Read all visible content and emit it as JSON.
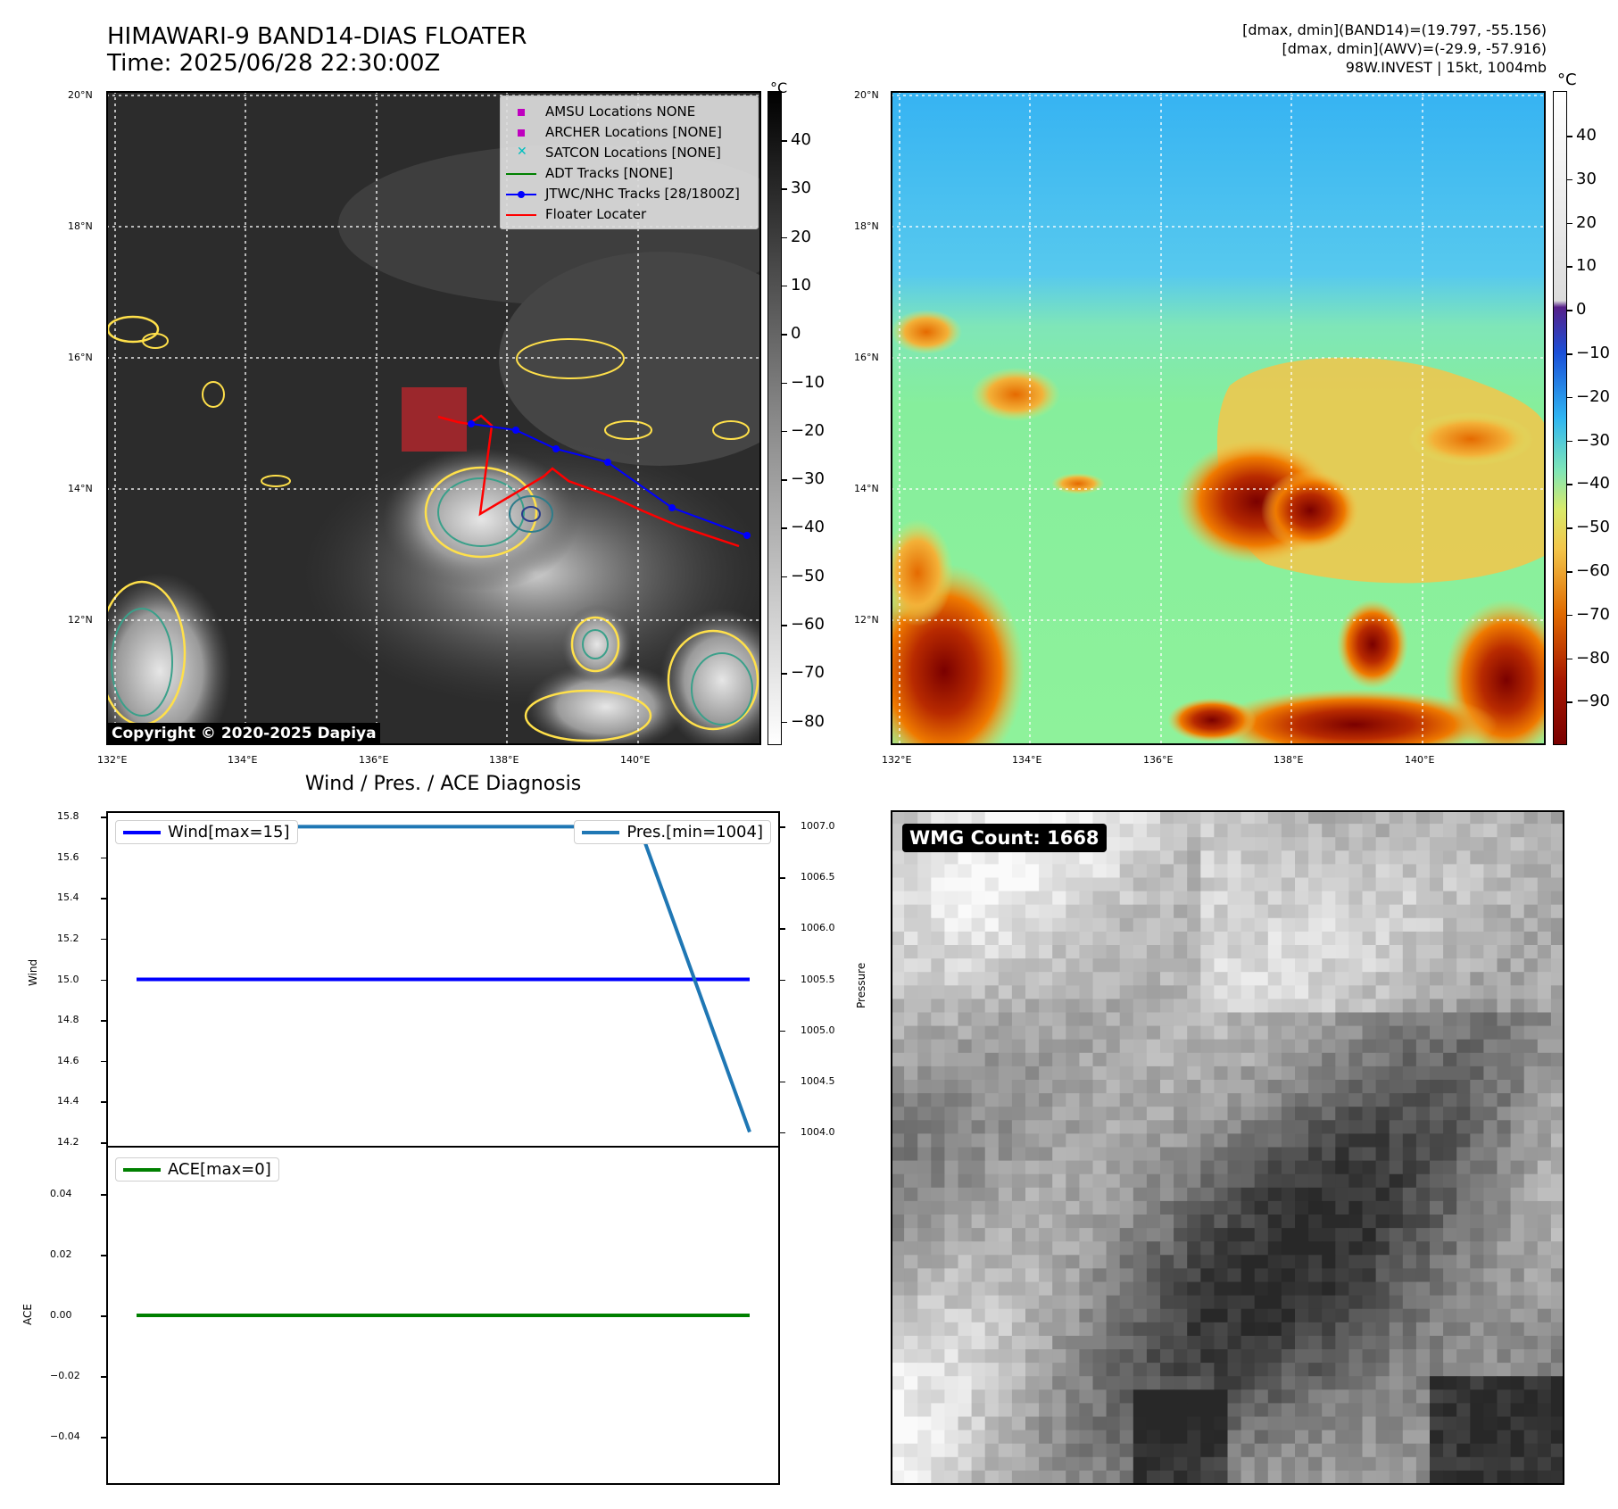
{
  "map": {
    "title_line1": "HIMAWARI-9 BAND14-DIAS FLOATER",
    "title_line2": "Time: 2025/06/28 22:30:00Z",
    "info_line1": "[dmax, dmin](BAND14)=(19.797, -55.156)",
    "info_line2": "[dmax, dmin](AWV)=(-29.9, -57.916)",
    "info_line3": "98W.INVEST | 15kt, 1004mb",
    "copyright": "Copyright © 2020-2025 Dapiya",
    "lat_ticks": [
      "20°N",
      "18°N",
      "16°N",
      "14°N",
      "12°N"
    ],
    "lon_ticks": [
      "132°E",
      "134°E",
      "136°E",
      "138°E",
      "140°E"
    ],
    "legend": [
      {
        "label": "AMSU Locations NONE",
        "marker": "square",
        "color": "#bf00bf"
      },
      {
        "label": "ARCHER Locations [NONE]",
        "marker": "square",
        "color": "#bf00bf"
      },
      {
        "label": "SATCON Locations [NONE]",
        "marker": "x",
        "color": "#00bfbf"
      },
      {
        "label": "ADT Tracks [NONE]",
        "marker": "line",
        "color": "#008000"
      },
      {
        "label": "JTWC/NHC Tracks [28/1800Z]",
        "marker": "line-dot",
        "color": "#0000ff"
      },
      {
        "label": "Floater Locater",
        "marker": "line",
        "color": "#ff0000"
      }
    ],
    "colorbar_unit": "°C",
    "colorbar_left_ticks": [
      "40",
      "30",
      "20",
      "10",
      "0",
      "−10",
      "−20",
      "−30",
      "−40",
      "−50",
      "−60",
      "−70",
      "−80"
    ],
    "colorbar_right_ticks": [
      "40",
      "30",
      "20",
      "10",
      "0",
      "−10",
      "−20",
      "−30",
      "−40",
      "−50",
      "−60",
      "−70",
      "−80",
      "−90"
    ]
  },
  "diag": {
    "title": "Wind / Pres. / ACE Diagnosis",
    "wind_label": "Wind",
    "pressure_label": "Pressure",
    "ace_label": "ACE",
    "wind_ticks": [
      "15.8",
      "15.6",
      "15.4",
      "15.2",
      "15.0",
      "14.8",
      "14.6",
      "14.4",
      "14.2"
    ],
    "pres_ticks": [
      "1007.0",
      "1006.5",
      "1006.0",
      "1005.5",
      "1005.0",
      "1004.5",
      "1004.0"
    ],
    "ace_ticks": [
      "0.04",
      "0.02",
      "0.00",
      "−0.02",
      "−0.04"
    ],
    "wind_legend": "Wind[max=15]",
    "pres_legend": "Pres.[min=1004]",
    "ace_legend": "ACE[max=0]"
  },
  "wmg": {
    "label": "WMG Count: 1668"
  },
  "chart_data": [
    {
      "type": "line",
      "title": "Wind / Pres. / ACE Diagnosis",
      "ylabel": "Wind",
      "ylim": [
        14.2,
        15.8
      ],
      "series": [
        {
          "name": "Wind[max=15]",
          "x": [
            0,
            1
          ],
          "y": [
            15,
            15
          ],
          "color": "#0000ff"
        }
      ]
    },
    {
      "type": "line",
      "ylabel": "Pressure",
      "ylim": [
        1003.9,
        1007.1
      ],
      "series": [
        {
          "name": "Pres.[min=1004]",
          "x": [
            0,
            0.82,
            1
          ],
          "y": [
            1007,
            1007,
            1004
          ],
          "color": "#1f77b4"
        }
      ]
    },
    {
      "type": "line",
      "ylabel": "ACE",
      "ylim": [
        -0.055,
        0.055
      ],
      "series": [
        {
          "name": "ACE[max=0]",
          "x": [
            0,
            1
          ],
          "y": [
            0,
            0
          ],
          "color": "#008000"
        }
      ]
    }
  ]
}
